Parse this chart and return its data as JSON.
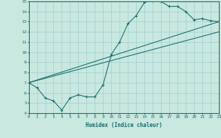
{
  "xlabel": "Humidex (Indice chaleur)",
  "xlim": [
    0,
    23
  ],
  "ylim": [
    4,
    15
  ],
  "xticks": [
    0,
    1,
    2,
    3,
    4,
    5,
    6,
    7,
    8,
    9,
    10,
    11,
    12,
    13,
    14,
    15,
    16,
    17,
    18,
    19,
    20,
    21,
    22,
    23
  ],
  "yticks": [
    4,
    5,
    6,
    7,
    8,
    9,
    10,
    11,
    12,
    13,
    14,
    15
  ],
  "background_color": "#c8e8e0",
  "line_color": "#1a6b6b",
  "grid_color": "#9ecece",
  "line1_x": [
    0,
    1,
    2,
    3,
    4,
    5,
    6,
    7,
    8,
    9,
    10,
    11,
    12,
    13,
    14,
    15,
    16,
    17,
    18,
    19,
    20,
    21,
    22,
    23
  ],
  "line1_y": [
    7.0,
    6.5,
    5.5,
    5.2,
    4.3,
    5.5,
    5.8,
    5.6,
    5.6,
    6.8,
    9.8,
    11.0,
    12.8,
    13.6,
    14.9,
    15.1,
    15.0,
    14.5,
    14.5,
    14.0,
    13.2,
    13.3,
    13.1,
    13.0
  ],
  "line2_x": [
    0,
    23
  ],
  "line2_y": [
    7.0,
    13.0
  ],
  "line3_x": [
    0,
    23
  ],
  "line3_y": [
    7.0,
    12.0
  ]
}
